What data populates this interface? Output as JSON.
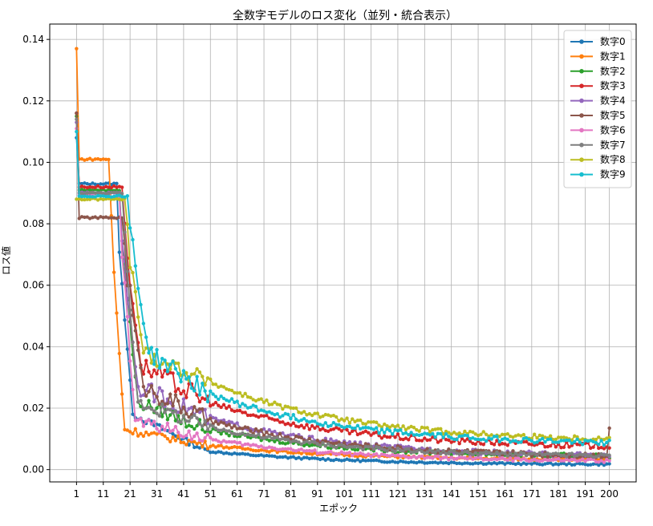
{
  "chart_data": {
    "type": "line",
    "title": "全数字モデルのロス変化（並列・統合表示）",
    "xlabel": "エポック",
    "ylabel": "ロス値",
    "xlim": [
      1,
      200
    ],
    "ylim": [
      0,
      0.145
    ],
    "xticks": [
      1,
      11,
      21,
      31,
      41,
      51,
      61,
      71,
      81,
      91,
      101,
      111,
      121,
      131,
      141,
      151,
      161,
      171,
      181,
      191,
      200
    ],
    "yticks": [
      0.0,
      0.02,
      0.04,
      0.06,
      0.08,
      0.1,
      0.12,
      0.14
    ],
    "ytick_labels": [
      "0.00",
      "0.02",
      "0.04",
      "0.06",
      "0.08",
      "0.10",
      "0.12",
      "0.14"
    ],
    "grid": true,
    "legend_position": "top-right",
    "series": [
      {
        "name": "数字0",
        "color": "#1f77b4",
        "start": 0.108,
        "plateau": 0.093,
        "plateau_end": 16,
        "drop_end": 22,
        "after_drop": 0.018,
        "mid_epoch": 50,
        "mid_value": 0.006,
        "end_value": 0.0015,
        "noise": 0.0004,
        "end_spike": 0
      },
      {
        "name": "数字1",
        "color": "#ff7f0e",
        "start": 0.137,
        "plateau": 0.101,
        "plateau_end": 13,
        "drop_end": 19,
        "after_drop": 0.013,
        "mid_epoch": 50,
        "mid_value": 0.008,
        "end_value": 0.003,
        "noise": 0.0005,
        "end_spike": 0
      },
      {
        "name": "数字2",
        "color": "#2ca02c",
        "start": 0.115,
        "plateau": 0.091,
        "plateau_end": 17,
        "drop_end": 24,
        "after_drop": 0.022,
        "mid_epoch": 50,
        "mid_value": 0.013,
        "end_value": 0.004,
        "noise": 0.0009,
        "end_spike": 0
      },
      {
        "name": "数字3",
        "color": "#d62728",
        "start": 0.116,
        "plateau": 0.092,
        "plateau_end": 18,
        "drop_end": 25,
        "after_drop": 0.034,
        "mid_epoch": 50,
        "mid_value": 0.022,
        "end_value": 0.007,
        "noise": 0.0013,
        "end_spike": 0
      },
      {
        "name": "数字4",
        "color": "#9467bd",
        "start": 0.113,
        "plateau": 0.09,
        "plateau_end": 17,
        "drop_end": 24,
        "after_drop": 0.027,
        "mid_epoch": 50,
        "mid_value": 0.017,
        "end_value": 0.004,
        "noise": 0.0011,
        "end_spike": 0
      },
      {
        "name": "数字5",
        "color": "#8c564b",
        "start": 0.116,
        "plateau": 0.082,
        "plateau_end": 18,
        "drop_end": 26,
        "after_drop": 0.027,
        "mid_epoch": 50,
        "mid_value": 0.016,
        "end_value": 0.004,
        "noise": 0.0012,
        "end_spike": 0.0135
      },
      {
        "name": "数字6",
        "color": "#e377c2",
        "start": 0.111,
        "plateau": 0.089,
        "plateau_end": 17,
        "drop_end": 23,
        "after_drop": 0.016,
        "mid_epoch": 50,
        "mid_value": 0.01,
        "end_value": 0.0025,
        "noise": 0.0007,
        "end_spike": 0
      },
      {
        "name": "数字7",
        "color": "#7f7f7f",
        "start": 0.114,
        "plateau": 0.09,
        "plateau_end": 18,
        "drop_end": 24,
        "after_drop": 0.022,
        "mid_epoch": 50,
        "mid_value": 0.014,
        "end_value": 0.004,
        "noise": 0.0009,
        "end_spike": 0
      },
      {
        "name": "数字8",
        "color": "#bcbd22",
        "start": 0.088,
        "plateau": 0.088,
        "plateau_end": 19,
        "drop_end": 26,
        "after_drop": 0.038,
        "mid_epoch": 50,
        "mid_value": 0.029,
        "end_value": 0.009,
        "noise": 0.0011,
        "end_spike": 0
      },
      {
        "name": "数字9",
        "color": "#17becf",
        "start": 0.11,
        "plateau": 0.089,
        "plateau_end": 20,
        "drop_end": 28,
        "after_drop": 0.038,
        "mid_epoch": 50,
        "mid_value": 0.025,
        "end_value": 0.008,
        "noise": 0.0012,
        "end_spike": 0
      }
    ]
  }
}
